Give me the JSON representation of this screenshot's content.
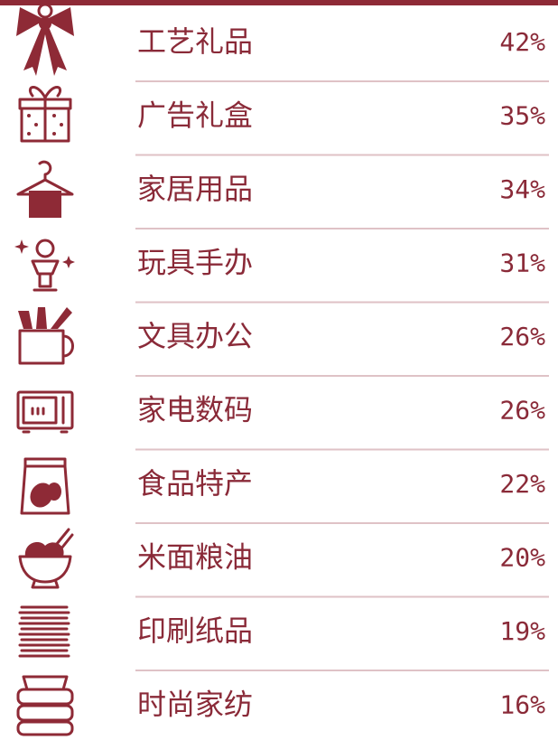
{
  "items": [
    {
      "label": "工艺礼品",
      "value": "42%"
    },
    {
      "label": "广告礼盒",
      "value": "35%"
    },
    {
      "label": "家居用品",
      "value": "34%"
    },
    {
      "label": "玩具手办",
      "value": "31%"
    },
    {
      "label": "文具办公",
      "value": "26%"
    },
    {
      "label": "家电数码",
      "value": "26%"
    },
    {
      "label": "食品特产",
      "value": "22%"
    },
    {
      "label": "米面粮油",
      "value": "20%"
    },
    {
      "label": "印刷纸品",
      "value": "19%"
    },
    {
      "label": "时尚家纺",
      "value": "16%"
    }
  ]
}
